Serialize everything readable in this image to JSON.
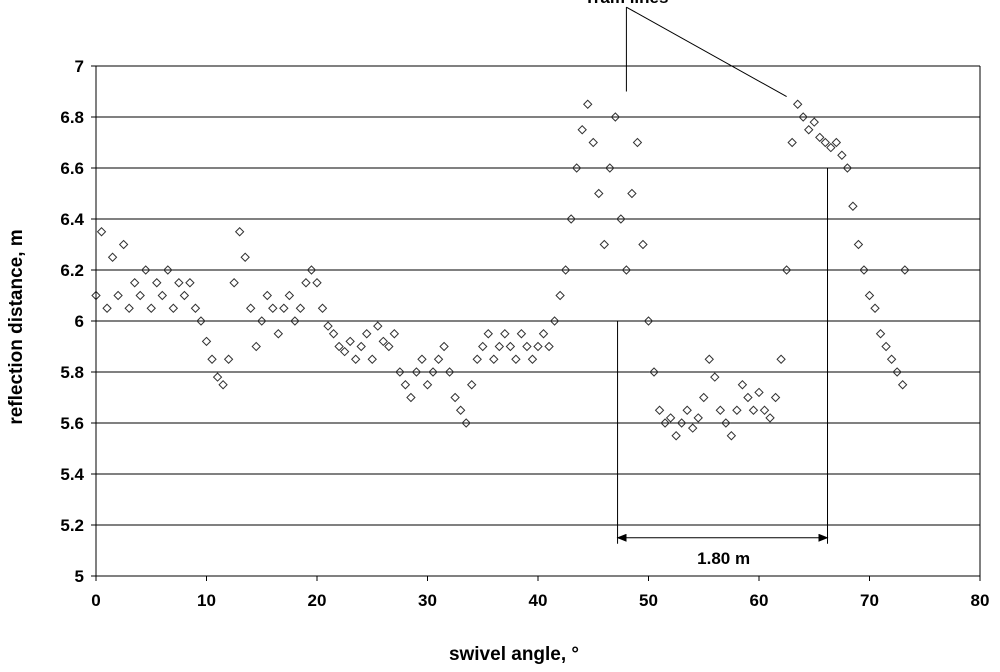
{
  "chart_data": {
    "type": "scatter",
    "xlabel": "swivel angle, °",
    "ylabel": "reflection distance, m",
    "xlim": [
      0,
      80
    ],
    "ylim": [
      5,
      7
    ],
    "xticks": [
      0,
      10,
      20,
      30,
      40,
      50,
      60,
      70,
      80
    ],
    "yticks": [
      5,
      5.2,
      5.4,
      5.6,
      5.8,
      6,
      6.2,
      6.4,
      6.6,
      6.8,
      7
    ],
    "grid": "horizontal",
    "marker": "open-diamond",
    "colors": {
      "marker": "#333333",
      "grid": "#000000",
      "axis": "#000000"
    },
    "series": [
      {
        "points": [
          [
            0,
            6.1
          ],
          [
            0.5,
            6.35
          ],
          [
            1,
            6.05
          ],
          [
            1.5,
            6.25
          ],
          [
            2,
            6.1
          ],
          [
            2.5,
            6.3
          ],
          [
            3,
            6.05
          ],
          [
            3.5,
            6.15
          ],
          [
            4,
            6.1
          ],
          [
            4.5,
            6.2
          ],
          [
            5,
            6.05
          ],
          [
            5.5,
            6.15
          ],
          [
            6,
            6.1
          ],
          [
            6.5,
            6.2
          ],
          [
            7,
            6.05
          ],
          [
            7.5,
            6.15
          ],
          [
            8,
            6.1
          ],
          [
            8.5,
            6.15
          ],
          [
            9,
            6.05
          ],
          [
            9.5,
            6.0
          ],
          [
            10,
            5.92
          ],
          [
            10.5,
            5.85
          ],
          [
            11,
            5.78
          ],
          [
            11.5,
            5.75
          ],
          [
            12,
            5.85
          ],
          [
            12.5,
            6.15
          ],
          [
            13,
            6.35
          ],
          [
            13.5,
            6.25
          ],
          [
            14,
            6.05
          ],
          [
            14.5,
            5.9
          ],
          [
            15,
            6.0
          ],
          [
            15.5,
            6.1
          ],
          [
            16,
            6.05
          ],
          [
            16.5,
            5.95
          ],
          [
            17,
            6.05
          ],
          [
            17.5,
            6.1
          ],
          [
            18,
            6.0
          ],
          [
            18.5,
            6.05
          ],
          [
            19,
            6.15
          ],
          [
            19.5,
            6.2
          ],
          [
            20,
            6.15
          ],
          [
            20.5,
            6.05
          ],
          [
            21,
            5.98
          ],
          [
            21.5,
            5.95
          ],
          [
            22,
            5.9
          ],
          [
            22.5,
            5.88
          ],
          [
            23,
            5.92
          ],
          [
            23.5,
            5.85
          ],
          [
            24,
            5.9
          ],
          [
            24.5,
            5.95
          ],
          [
            25,
            5.85
          ],
          [
            25.5,
            5.98
          ],
          [
            26,
            5.92
          ],
          [
            26.5,
            5.9
          ],
          [
            27,
            5.95
          ],
          [
            27.5,
            5.8
          ],
          [
            28,
            5.75
          ],
          [
            28.5,
            5.7
          ],
          [
            29,
            5.8
          ],
          [
            29.5,
            5.85
          ],
          [
            30,
            5.75
          ],
          [
            30.5,
            5.8
          ],
          [
            31,
            5.85
          ],
          [
            31.5,
            5.9
          ],
          [
            32,
            5.8
          ],
          [
            32.5,
            5.7
          ],
          [
            33,
            5.65
          ],
          [
            33.5,
            5.6
          ],
          [
            34,
            5.75
          ],
          [
            34.5,
            5.85
          ],
          [
            35,
            5.9
          ],
          [
            35.5,
            5.95
          ],
          [
            36,
            5.85
          ],
          [
            36.5,
            5.9
          ],
          [
            37,
            5.95
          ],
          [
            37.5,
            5.9
          ],
          [
            38,
            5.85
          ],
          [
            38.5,
            5.95
          ],
          [
            39,
            5.9
          ],
          [
            39.5,
            5.85
          ],
          [
            40,
            5.9
          ],
          [
            40.5,
            5.95
          ],
          [
            41,
            5.9
          ],
          [
            41.5,
            6.0
          ],
          [
            42,
            6.1
          ],
          [
            42.5,
            6.2
          ],
          [
            43,
            6.4
          ],
          [
            43.5,
            6.6
          ],
          [
            44,
            6.75
          ],
          [
            44.5,
            6.85
          ],
          [
            45,
            6.7
          ],
          [
            45.5,
            6.5
          ],
          [
            46,
            6.3
          ],
          [
            46.5,
            6.6
          ],
          [
            47,
            6.8
          ],
          [
            47.5,
            6.4
          ],
          [
            48,
            6.2
          ],
          [
            48.5,
            6.5
          ],
          [
            49,
            6.7
          ],
          [
            49.5,
            6.3
          ],
          [
            50,
            6.0
          ],
          [
            50.5,
            5.8
          ],
          [
            51,
            5.65
          ],
          [
            51.5,
            5.6
          ],
          [
            52,
            5.62
          ],
          [
            52.5,
            5.55
          ],
          [
            53,
            5.6
          ],
          [
            53.5,
            5.65
          ],
          [
            54,
            5.58
          ],
          [
            54.5,
            5.62
          ],
          [
            55,
            5.7
          ],
          [
            55.5,
            5.85
          ],
          [
            56,
            5.78
          ],
          [
            56.5,
            5.65
          ],
          [
            57,
            5.6
          ],
          [
            57.5,
            5.55
          ],
          [
            58,
            5.65
          ],
          [
            58.5,
            5.75
          ],
          [
            59,
            5.7
          ],
          [
            59.5,
            5.65
          ],
          [
            60,
            5.72
          ],
          [
            60.5,
            5.65
          ],
          [
            61,
            5.62
          ],
          [
            61.5,
            5.7
          ],
          [
            62,
            5.85
          ],
          [
            62.5,
            6.2
          ],
          [
            63,
            6.7
          ],
          [
            63.5,
            6.85
          ],
          [
            64,
            6.8
          ],
          [
            64.5,
            6.75
          ],
          [
            65,
            6.78
          ],
          [
            65.5,
            6.72
          ],
          [
            66,
            6.7
          ],
          [
            66.5,
            6.68
          ],
          [
            67,
            6.7
          ],
          [
            67.5,
            6.65
          ],
          [
            68,
            6.6
          ],
          [
            68.5,
            6.45
          ],
          [
            69,
            6.3
          ],
          [
            69.5,
            6.2
          ],
          [
            70,
            6.1
          ],
          [
            70.5,
            6.05
          ],
          [
            71,
            5.95
          ],
          [
            71.5,
            5.9
          ],
          [
            72,
            5.85
          ],
          [
            72.5,
            5.8
          ],
          [
            73,
            5.75
          ],
          [
            73.2,
            6.2
          ]
        ]
      }
    ],
    "annotations": [
      {
        "text": "Tram lines",
        "x": 48,
        "y": 7.27,
        "pointers": [
          [
            48,
            6.9
          ],
          [
            62.5,
            6.88
          ]
        ]
      },
      {
        "text": "1.80 m",
        "x": 56.8,
        "y": 5.07,
        "span": [
          47.2,
          66.2
        ],
        "arrow_y": 5.15
      }
    ]
  }
}
